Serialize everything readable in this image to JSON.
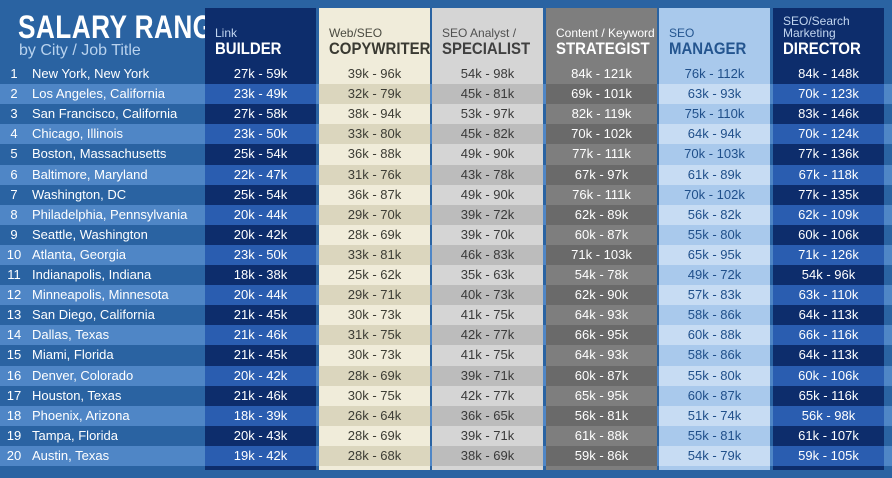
{
  "chart_data": {
    "type": "table",
    "title": "SALARY RANGES",
    "subtitle": "by City / Job Title",
    "columns": [
      {
        "top": "Link",
        "main": "BUILDER",
        "colors": {
          "bg": "#0d2d6c",
          "alt": "#2a5db0",
          "text": "#ffffff",
          "hdr_top": "#c2d6f0",
          "hdr_main": "#ffffff"
        }
      },
      {
        "top": "Web/SEO",
        "main": "COPYWRITER",
        "colors": {
          "bg": "#f0ecda",
          "alt": "#dbd6be",
          "text": "#3c3c34",
          "hdr_top": "#4a4a40",
          "hdr_main": "#3a3a32"
        }
      },
      {
        "top": "SEO Analyst /",
        "main": "SPECIALIST",
        "colors": {
          "bg": "#d5d5d5",
          "alt": "#bcbcbc",
          "text": "#3a3a3a",
          "hdr_top": "#505050",
          "hdr_main": "#404040"
        }
      },
      {
        "top": "Content / Keyword",
        "main": "STRATEGIST",
        "colors": {
          "bg": "#7e7e7e",
          "alt": "#6a6a6a",
          "text": "#ffffff",
          "hdr_top": "#ffffff",
          "hdr_main": "#ffffff"
        }
      },
      {
        "top": "SEO",
        "main": "MANAGER",
        "colors": {
          "bg": "#a9c9ec",
          "alt": "#c7dcf3",
          "text": "#1f4f8a",
          "hdr_top": "#24558f",
          "hdr_main": "#24558f"
        }
      },
      {
        "top": "SEO/Search Marketing",
        "main": "DIRECTOR",
        "colors": {
          "bg": "#0d2d6c",
          "alt": "#2a5db0",
          "text": "#ffffff",
          "hdr_top": "#c2d6f0",
          "hdr_main": "#ffffff"
        }
      }
    ],
    "rows": [
      {
        "rank": "1",
        "city": "New York, New York",
        "values": [
          "27k - 59k",
          "39k - 96k",
          "54k - 98k",
          "84k - 121k",
          "76k - 112k",
          "84k - 148k"
        ]
      },
      {
        "rank": "2",
        "city": "Los Angeles, California",
        "values": [
          "23k - 49k",
          "32k - 79k",
          "45k - 81k",
          "69k - 101k",
          "63k - 93k",
          "70k - 123k"
        ]
      },
      {
        "rank": "3",
        "city": "San Francisco, California",
        "values": [
          "27k - 58k",
          "38k - 94k",
          "53k - 97k",
          "82k - 119k",
          "75k - 110k",
          "83k - 146k"
        ]
      },
      {
        "rank": "4",
        "city": "Chicago, Illinois",
        "values": [
          "23k - 50k",
          "33k - 80k",
          "45k - 82k",
          "70k - 102k",
          "64k - 94k",
          "70k - 124k"
        ]
      },
      {
        "rank": "5",
        "city": "Boston, Massachusetts",
        "values": [
          "25k - 54k",
          "36k - 88k",
          "49k - 90k",
          "77k - 111k",
          "70k - 103k",
          "77k - 136k"
        ]
      },
      {
        "rank": "6",
        "city": "Baltimore, Maryland",
        "values": [
          "22k - 47k",
          "31k - 76k",
          "43k - 78k",
          "67k - 97k",
          "61k - 89k",
          "67k - 118k"
        ]
      },
      {
        "rank": "7",
        "city": "Washington, DC",
        "values": [
          "25k - 54k",
          "36k - 87k",
          "49k - 90k",
          "76k - 111k",
          "70k - 102k",
          "77k - 135k"
        ]
      },
      {
        "rank": "8",
        "city": "Philadelphia, Pennsylvania",
        "values": [
          "20k - 44k",
          "29k - 70k",
          "39k - 72k",
          "62k - 89k",
          "56k - 82k",
          "62k - 109k"
        ]
      },
      {
        "rank": "9",
        "city": "Seattle, Washington",
        "values": [
          "20k - 42k",
          "28k - 69k",
          "39k - 70k",
          "60k - 87k",
          "55k - 80k",
          "60k - 106k"
        ]
      },
      {
        "rank": "10",
        "city": "Atlanta, Georgia",
        "values": [
          "23k - 50k",
          "33k - 81k",
          "46k - 83k",
          "71k - 103k",
          "65k - 95k",
          "71k - 126k"
        ]
      },
      {
        "rank": "11",
        "city": "Indianapolis, Indiana",
        "values": [
          "18k - 38k",
          "25k - 62k",
          "35k - 63k",
          "54k - 78k",
          "49k - 72k",
          "54k - 96k"
        ]
      },
      {
        "rank": "12",
        "city": "Minneapolis, Minnesota",
        "values": [
          "20k - 44k",
          "29k - 71k",
          "40k - 73k",
          "62k - 90k",
          "57k - 83k",
          "63k - 110k"
        ]
      },
      {
        "rank": "13",
        "city": "San Diego, California",
        "values": [
          "21k - 45k",
          "30k - 73k",
          "41k - 75k",
          "64k - 93k",
          "58k - 86k",
          "64k - 113k"
        ]
      },
      {
        "rank": "14",
        "city": "Dallas, Texas",
        "values": [
          "21k - 46k",
          "31k - 75k",
          "42k - 77k",
          "66k - 95k",
          "60k - 88k",
          "66k - 116k"
        ]
      },
      {
        "rank": "15",
        "city": "Miami, Florida",
        "values": [
          "21k - 45k",
          "30k - 73k",
          "41k - 75k",
          "64k - 93k",
          "58k - 86k",
          "64k - 113k"
        ]
      },
      {
        "rank": "16",
        "city": "Denver, Colorado",
        "values": [
          "20k - 42k",
          "28k - 69k",
          "39k - 71k",
          "60k - 87k",
          "55k - 80k",
          "60k - 106k"
        ]
      },
      {
        "rank": "17",
        "city": "Houston, Texas",
        "values": [
          "21k - 46k",
          "30k - 75k",
          "42k - 77k",
          "65k - 95k",
          "60k - 87k",
          "65k - 116k"
        ]
      },
      {
        "rank": "18",
        "city": "Phoenix, Arizona",
        "values": [
          "18k - 39k",
          "26k - 64k",
          "36k - 65k",
          "56k - 81k",
          "51k - 74k",
          "56k - 98k"
        ]
      },
      {
        "rank": "19",
        "city": "Tampa, Florida",
        "values": [
          "20k - 43k",
          "28k - 69k",
          "39k - 71k",
          "61k - 88k",
          "55k - 81k",
          "61k - 107k"
        ]
      },
      {
        "rank": "20",
        "city": "Austin, Texas",
        "values": [
          "19k - 42k",
          "28k - 68k",
          "38k - 69k",
          "59k - 86k",
          "54k - 79k",
          "59k - 105k"
        ]
      }
    ]
  },
  "colors": {
    "background": "#2a63a2",
    "stripe": "#4f86c6"
  }
}
